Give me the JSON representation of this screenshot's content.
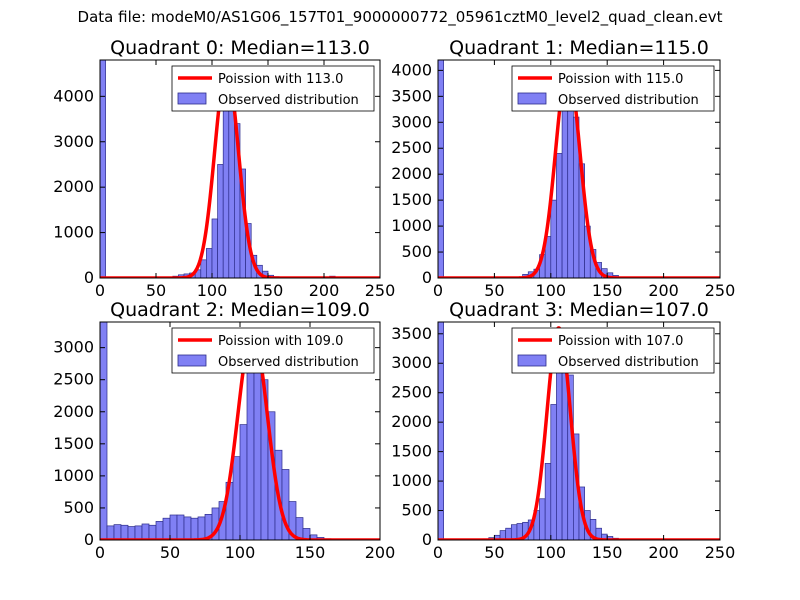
{
  "figure": {
    "suptitle": "Data file: modeM0/AS1G06_157T01_9000000772_05961cztM0_level2_quad_clean.evt"
  },
  "colors": {
    "hist_fill": "#8080f4",
    "hist_edge": "#2c2c8a",
    "poisson_line": "#ff0000",
    "axes": "#000000"
  },
  "chart_data": [
    {
      "type": "bar",
      "title": "Quadrant 0: Median=113.0",
      "median": 113.0,
      "xlim": [
        0,
        250
      ],
      "ylim": [
        0,
        4800
      ],
      "xticks": [
        0,
        50,
        100,
        150,
        200,
        250
      ],
      "yticks": [
        0,
        1000,
        2000,
        3000,
        4000
      ],
      "bin_width": 5,
      "legend": {
        "position": "top-right",
        "line_label": "Poission with 113.0",
        "hist_label": "Observed distribution"
      },
      "bins": [
        [
          0,
          4800
        ],
        [
          60,
          10
        ],
        [
          65,
          40
        ],
        [
          70,
          70
        ],
        [
          75,
          90
        ],
        [
          80,
          110
        ],
        [
          85,
          180
        ],
        [
          90,
          400
        ],
        [
          95,
          650
        ],
        [
          100,
          1300
        ],
        [
          105,
          2500
        ],
        [
          110,
          3800
        ],
        [
          115,
          4000
        ],
        [
          120,
          3400
        ],
        [
          125,
          2400
        ],
        [
          130,
          1200
        ],
        [
          135,
          500
        ],
        [
          140,
          280
        ],
        [
          145,
          150
        ],
        [
          150,
          60
        ],
        [
          155,
          30
        ],
        [
          160,
          20
        ],
        [
          165,
          10
        ],
        [
          170,
          10
        ],
        [
          175,
          10
        ],
        [
          180,
          10
        ],
        [
          185,
          10
        ],
        [
          190,
          10
        ],
        [
          195,
          10
        ],
        [
          200,
          10
        ],
        [
          205,
          40
        ]
      ],
      "poisson": {
        "mean": 113.0,
        "peak": 4600
      }
    },
    {
      "type": "bar",
      "title": "Quadrant 1: Median=115.0",
      "median": 115.0,
      "xlim": [
        0,
        250
      ],
      "ylim": [
        0,
        4200
      ],
      "xticks": [
        0,
        50,
        100,
        150,
        200,
        250
      ],
      "yticks": [
        0,
        500,
        1000,
        1500,
        2000,
        2500,
        3000,
        3500,
        4000
      ],
      "bin_width": 5,
      "legend": {
        "position": "top-right",
        "line_label": "Poission with 115.0",
        "hist_label": "Observed distribution"
      },
      "bins": [
        [
          0,
          4200
        ],
        [
          70,
          20
        ],
        [
          75,
          70
        ],
        [
          80,
          120
        ],
        [
          85,
          170
        ],
        [
          90,
          450
        ],
        [
          95,
          800
        ],
        [
          100,
          1500
        ],
        [
          105,
          2400
        ],
        [
          110,
          3500
        ],
        [
          115,
          3600
        ],
        [
          120,
          3100
        ],
        [
          125,
          2200
        ],
        [
          130,
          1000
        ],
        [
          135,
          550
        ],
        [
          140,
          300
        ],
        [
          145,
          180
        ],
        [
          150,
          100
        ],
        [
          155,
          50
        ],
        [
          160,
          20
        ],
        [
          165,
          10
        ],
        [
          170,
          10
        ],
        [
          175,
          10
        ],
        [
          180,
          10
        ],
        [
          185,
          10
        ],
        [
          190,
          10
        ],
        [
          195,
          10
        ],
        [
          200,
          10
        ],
        [
          205,
          10
        ]
      ],
      "poisson": {
        "mean": 115.0,
        "peak": 4050
      }
    },
    {
      "type": "bar",
      "title": "Quadrant 2: Median=109.0",
      "median": 109.0,
      "xlim": [
        0,
        200
      ],
      "ylim": [
        0,
        3400
      ],
      "xticks": [
        0,
        50,
        100,
        150,
        200
      ],
      "yticks": [
        0,
        500,
        1000,
        1500,
        2000,
        2500,
        3000
      ],
      "bin_width": 5,
      "legend": {
        "position": "top-right",
        "line_label": "Poission with 109.0",
        "hist_label": "Observed distribution"
      },
      "bins": [
        [
          0,
          3400
        ],
        [
          5,
          220
        ],
        [
          10,
          240
        ],
        [
          15,
          230
        ],
        [
          20,
          210
        ],
        [
          25,
          220
        ],
        [
          30,
          250
        ],
        [
          35,
          230
        ],
        [
          40,
          290
        ],
        [
          45,
          340
        ],
        [
          50,
          390
        ],
        [
          55,
          390
        ],
        [
          60,
          360
        ],
        [
          65,
          340
        ],
        [
          70,
          360
        ],
        [
          75,
          400
        ],
        [
          80,
          500
        ],
        [
          85,
          600
        ],
        [
          90,
          900
        ],
        [
          95,
          1300
        ],
        [
          100,
          1800
        ],
        [
          105,
          3100
        ],
        [
          110,
          3300
        ],
        [
          115,
          2500
        ],
        [
          120,
          2000
        ],
        [
          125,
          1400
        ],
        [
          130,
          1100
        ],
        [
          135,
          600
        ],
        [
          140,
          350
        ],
        [
          145,
          180
        ],
        [
          150,
          80
        ],
        [
          155,
          40
        ],
        [
          160,
          20
        ],
        [
          165,
          15
        ],
        [
          170,
          10
        ],
        [
          175,
          10
        ],
        [
          180,
          10
        ],
        [
          185,
          10
        ],
        [
          190,
          10
        ]
      ],
      "poisson": {
        "mean": 109.0,
        "peak": 3250
      }
    },
    {
      "type": "bar",
      "title": "Quadrant 3: Median=107.0",
      "median": 107.0,
      "xlim": [
        0,
        250
      ],
      "ylim": [
        0,
        3700
      ],
      "xticks": [
        0,
        50,
        100,
        150,
        200,
        250
      ],
      "yticks": [
        0,
        500,
        1000,
        1500,
        2000,
        2500,
        3000,
        3500
      ],
      "bin_width": 5,
      "legend": {
        "position": "top-right",
        "line_label": "Poission with 107.0",
        "hist_label": "Observed distribution"
      },
      "bins": [
        [
          0,
          3700
        ],
        [
          40,
          20
        ],
        [
          45,
          40
        ],
        [
          50,
          80
        ],
        [
          55,
          160
        ],
        [
          60,
          200
        ],
        [
          65,
          260
        ],
        [
          70,
          280
        ],
        [
          75,
          300
        ],
        [
          80,
          340
        ],
        [
          85,
          500
        ],
        [
          90,
          700
        ],
        [
          95,
          1300
        ],
        [
          100,
          2300
        ],
        [
          105,
          3400
        ],
        [
          110,
          3300
        ],
        [
          115,
          2800
        ],
        [
          120,
          1800
        ],
        [
          125,
          900
        ],
        [
          130,
          500
        ],
        [
          135,
          350
        ],
        [
          140,
          200
        ],
        [
          145,
          100
        ],
        [
          150,
          60
        ],
        [
          155,
          30
        ],
        [
          160,
          15
        ],
        [
          165,
          10
        ],
        [
          170,
          10
        ],
        [
          175,
          10
        ],
        [
          180,
          10
        ],
        [
          185,
          10
        ],
        [
          190,
          10
        ],
        [
          195,
          10
        ],
        [
          200,
          10
        ]
      ],
      "poisson": {
        "mean": 107.0,
        "peak": 3600
      }
    }
  ]
}
